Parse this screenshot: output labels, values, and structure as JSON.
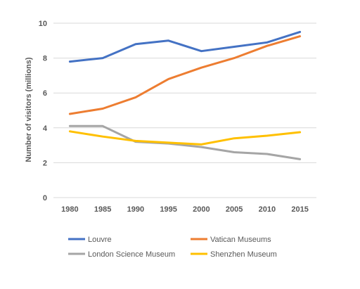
{
  "chart_data": {
    "type": "line",
    "title": "",
    "xlabel": "",
    "ylabel": "Number of visitors (millions)",
    "x": [
      "1980",
      "1985",
      "1990",
      "1995",
      "2000",
      "2005",
      "2010",
      "2015"
    ],
    "yticks": [
      "0",
      "2",
      "4",
      "6",
      "8",
      "10"
    ],
    "ylim": [
      0,
      10
    ],
    "grid": true,
    "legend_position": "bottom",
    "series": [
      {
        "name": "Louvre",
        "color": "#4472c4",
        "values": [
          7.8,
          8.0,
          8.8,
          9.0,
          8.4,
          8.65,
          8.9,
          9.5
        ]
      },
      {
        "name": "Vatican Museums",
        "color": "#ed7d31",
        "values": [
          4.8,
          5.1,
          5.75,
          6.8,
          7.45,
          8.0,
          8.7,
          9.25
        ]
      },
      {
        "name": "London Science Museum",
        "color": "#a5a5a5",
        "values": [
          4.1,
          4.1,
          3.2,
          3.1,
          2.9,
          2.6,
          2.5,
          2.2
        ]
      },
      {
        "name": "Shenzhen Museum",
        "color": "#ffc000",
        "values": [
          3.8,
          3.5,
          3.25,
          3.15,
          3.05,
          3.4,
          3.55,
          3.75
        ]
      }
    ]
  }
}
